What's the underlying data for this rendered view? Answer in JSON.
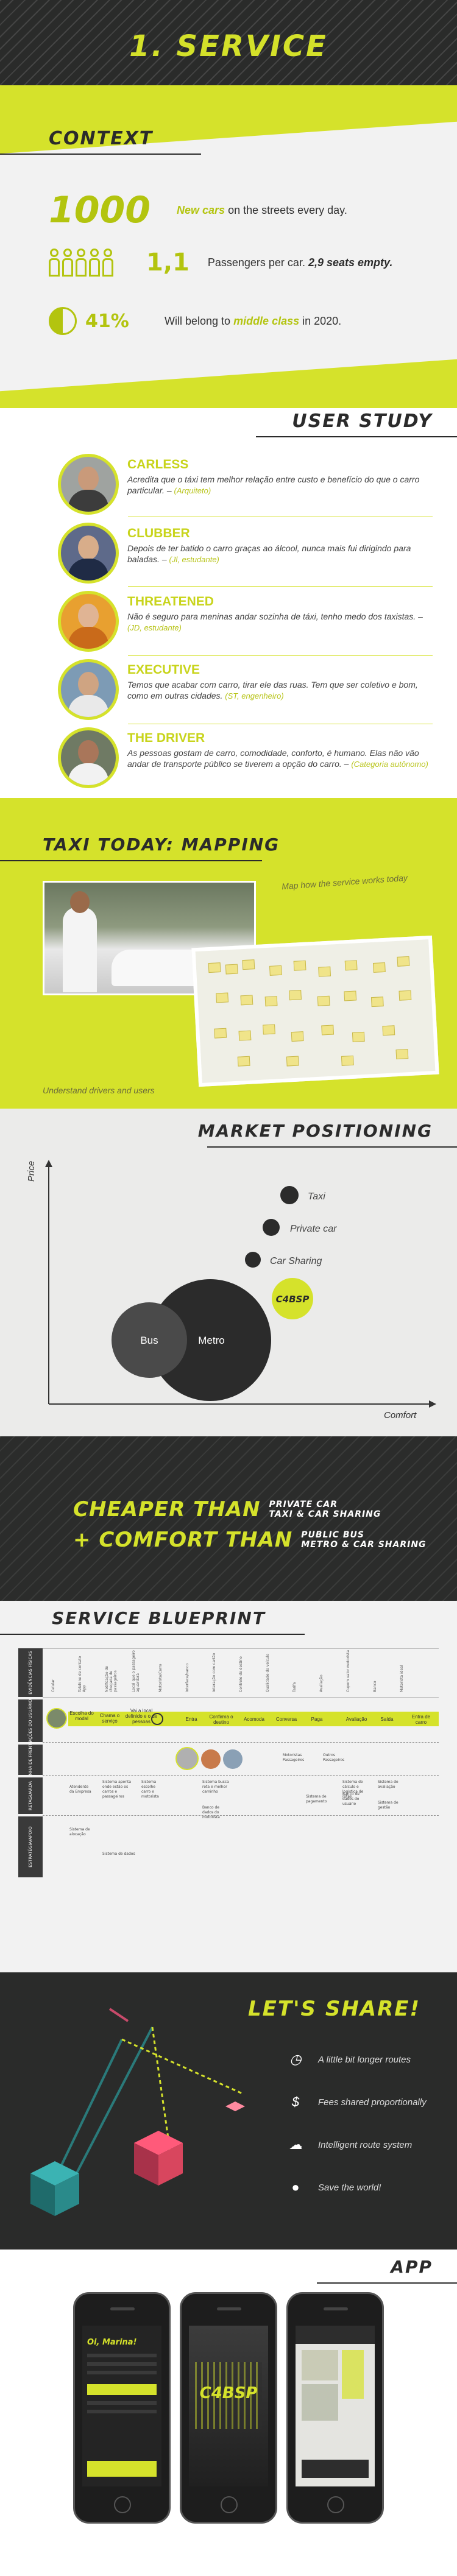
{
  "hero": {
    "title": "1. SERVICE"
  },
  "context": {
    "title": "CONTEXT",
    "rows": [
      {
        "big": "1000",
        "bold": "New cars",
        "rest": " on the  streets every day."
      },
      {
        "ratio": "1,1",
        "text": "Passengers per car. ",
        "bold": "2,9 seats empty."
      },
      {
        "pct": "41%",
        "text": "Will belong to ",
        "bold": "middle class",
        "rest": " in 2020."
      }
    ]
  },
  "user_study": {
    "title": "USER STUDY",
    "profiles": [
      {
        "name": "CARLESS",
        "quote": "Acredita que o táxi tem melhor relação entre custo e benefício do que o carro particular. – ",
        "who": "(Arquiteto)"
      },
      {
        "name": "CLUBBER",
        "quote": "Depois de ter batido o carro graças ao álcool, nunca mais fui dirigindo para baladas. – ",
        "who": "(Jl, estudante)"
      },
      {
        "name": "THREATENED",
        "quote": "Não é seguro para meninas andar sozinha de táxi, tenho medo dos taxistas. – ",
        "who": "(JD, estudante)"
      },
      {
        "name": "EXECUTIVE",
        "quote": "Temos que acabar com carro, tirar ele das ruas. Tem que ser coletivo e bom, como em outras cidades. ",
        "who": "(ST, engenheiro)"
      },
      {
        "name": "THE DRIVER",
        "quote": "As pessoas gostam de carro, comodidade, conforto, é humano. Elas não vão andar de transporte público se tiverem a opção do carro. – ",
        "who": "(Categoria autônomo)"
      }
    ]
  },
  "mapping": {
    "title": "TAXI TODAY: MAPPING",
    "caption_left": "Understand drivers and users",
    "caption_right": "Map how the service works today"
  },
  "market": {
    "title": "MARKET POSITIONING",
    "y_label": "Price",
    "x_label": "Comfort",
    "items": [
      "Taxi",
      "Private car",
      "Car Sharing",
      "C4BSP",
      "Bus",
      "Metro"
    ]
  },
  "cheaper": {
    "rows": [
      {
        "big": "CHEAPER THAN",
        "small1": "PRIVATE CAR",
        "small2": "TAXI & CAR SHARING"
      },
      {
        "big": "+ COMFORT THAN",
        "small1": "PUBLIC BUS",
        "small2": "METRO & CAR SHARING"
      }
    ]
  },
  "blueprint": {
    "title": "SERVICE BLUEPRINT",
    "lanes": [
      "EVIDÊNCIAS FÍSICAS",
      "AÇÕES DO USUÁRIO",
      "LINHA DE FRENTE",
      "RETAGUARDA",
      "ESTRATÉGIA/APOIO"
    ],
    "steps": [
      "Escolha do modal",
      "Chama o serviço",
      "Vai a local definido e o de pessoas",
      "Entra",
      "Confirma o destino",
      "Acomoda",
      "Conversa",
      "Paga",
      "Avaliação",
      "Saída",
      "Entra de carro"
    ],
    "columns": [
      "Celular",
      "Telefone de contato App",
      "Notificação de chegada de passageiros",
      "Local que o passageiro aguardará",
      "Motorista/Carro",
      "Interface/banco",
      "Interação com cartão",
      "Controle de destino",
      "Qualidade do veículo",
      "Tarifa",
      "Avaliação",
      "Cupom valor motorista",
      "Banco",
      "Motorista ideal"
    ],
    "front": [
      "Motoristas Passageiros",
      "Outros Passageiros"
    ],
    "back": [
      "Atendente da Empresa",
      "Sistema aponta onde estão os carros e passageiros",
      "Sistema escolhe carro e motorista",
      "Sistema busca rota e melhor caminho",
      "Sistema de pagamento",
      "Sistema de avaliação",
      "Banco de dados do motorista",
      "Banco de dados do usuário",
      "Sistema de alocação",
      "Sistema de dados",
      "Sistema de gestão",
      "Sistema de cálculo e logística de rotas"
    ]
  },
  "share": {
    "title": "LET'S SHARE!",
    "items": [
      {
        "icon": "clock-icon",
        "text": "A little bit longer routes"
      },
      {
        "icon": "dollar-icon",
        "text": "Fees shared proportionally"
      },
      {
        "icon": "route-icon",
        "text": "Intelligent  route system"
      },
      {
        "icon": "globe-icon",
        "text": "Save the world!"
      }
    ]
  },
  "app": {
    "title": "APP",
    "greeting": "Oi, Marina!",
    "logo": "C4BSP"
  },
  "colors": {
    "lime": "#d5e22b",
    "dark": "#2a2b2a"
  }
}
